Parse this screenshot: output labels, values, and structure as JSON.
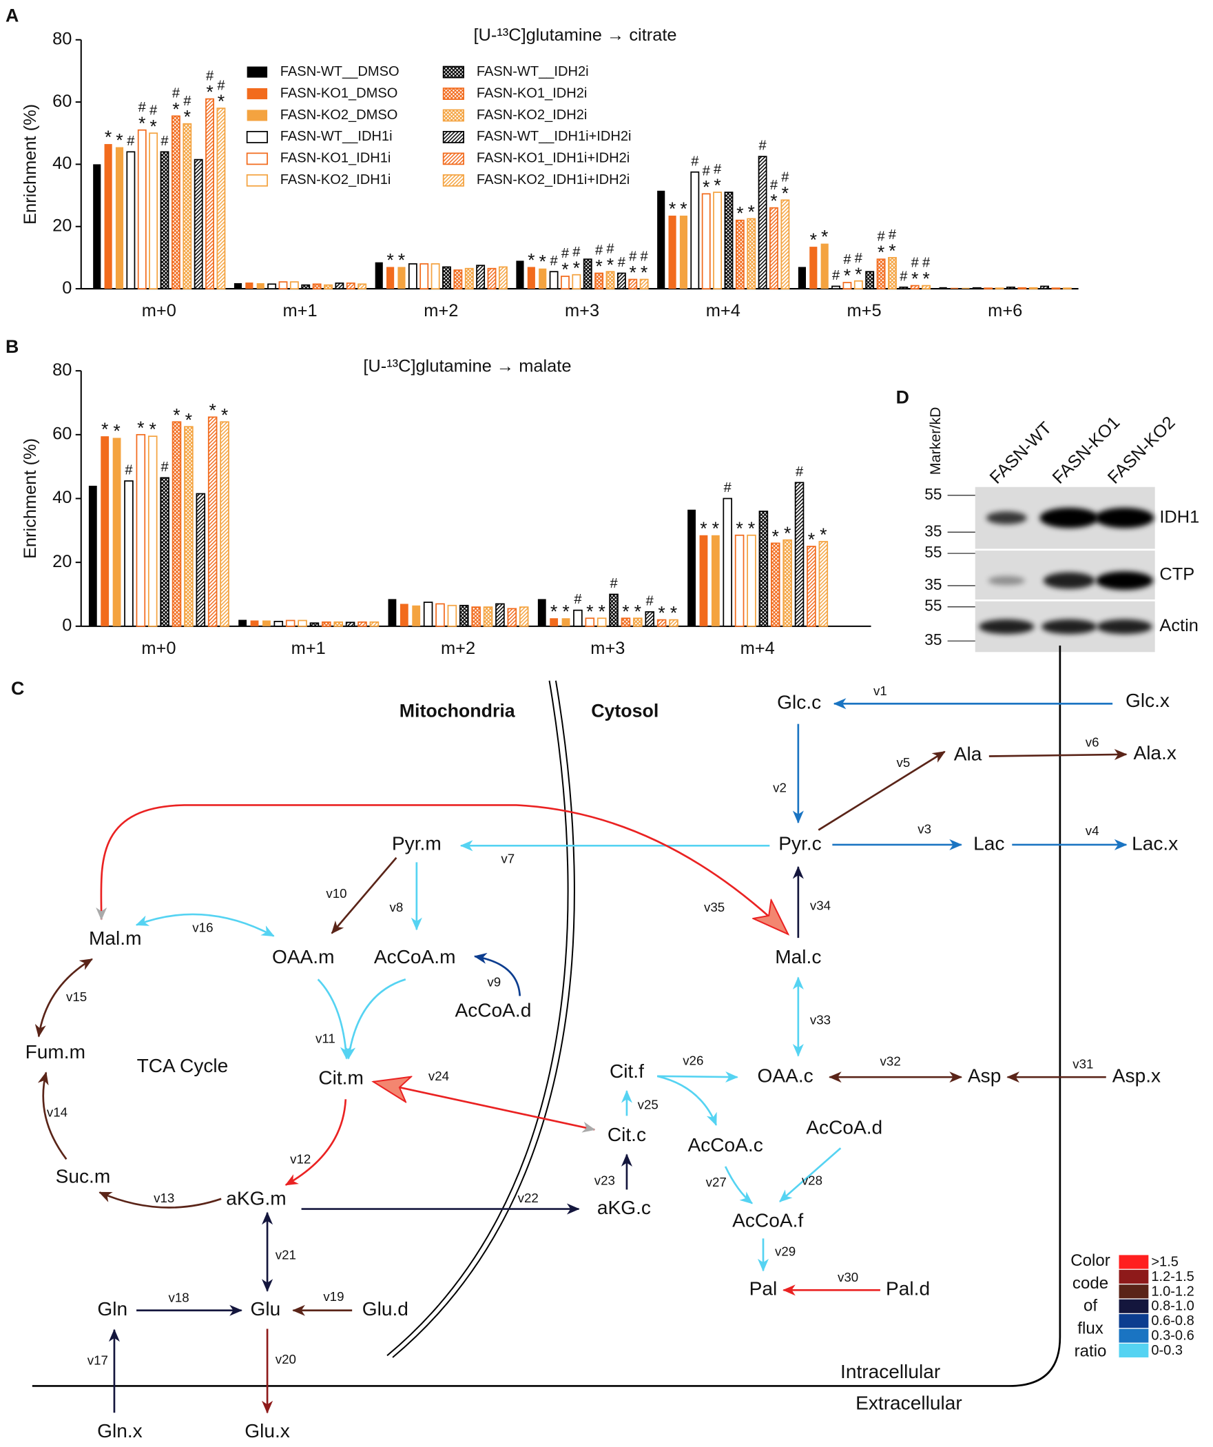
{
  "chart_data": [
    {
      "type": "bar",
      "panel": "A",
      "title": "[U-¹³C]glutamine → citrate",
      "ylabel": "Enrichment (%)",
      "categories": [
        "m+0",
        "m+1",
        "m+2",
        "m+3",
        "m+4",
        "m+5",
        "m+6"
      ],
      "ylim": [
        0,
        80
      ],
      "yticks": [
        0,
        20,
        40,
        60,
        80
      ],
      "series": [
        {
          "name": "FASN-WT__DMSO",
          "color": "#000000",
          "pattern": "solid",
          "values": [
            40,
            1.8,
            8.5,
            9,
            31.5,
            7,
            0.5
          ],
          "annotations": [
            null,
            null,
            null,
            null,
            null,
            null,
            null
          ]
        },
        {
          "name": "FASN-KO1_DMSO",
          "color": "#f26b1d",
          "pattern": "solid",
          "values": [
            46.5,
            2,
            7,
            7,
            23.5,
            13.5,
            0.3
          ],
          "annotations": [
            [
              "*"
            ],
            null,
            [
              "*"
            ],
            [
              "*"
            ],
            [
              "*"
            ],
            [
              "*"
            ],
            null
          ]
        },
        {
          "name": "FASN-KO2_DMSO",
          "color": "#f4a340",
          "pattern": "solid",
          "values": [
            45.5,
            1.8,
            7,
            6.5,
            23.5,
            14.5,
            0.3
          ],
          "annotations": [
            [
              "*"
            ],
            null,
            [
              "*"
            ],
            [
              "*"
            ],
            [
              "*"
            ],
            [
              "*"
            ],
            null
          ]
        },
        {
          "name": "FASN-WT__IDH1i",
          "color": "#000000",
          "pattern": "open",
          "values": [
            44,
            1.5,
            8,
            5.5,
            37.5,
            0.8,
            0.3
          ],
          "annotations": [
            [
              "#"
            ],
            null,
            null,
            [
              "#"
            ],
            [
              "#"
            ],
            [
              "#"
            ],
            null
          ]
        },
        {
          "name": "FASN-KO1_IDH1i",
          "color": "#f26b1d",
          "pattern": "open",
          "values": [
            51,
            2.2,
            8,
            4,
            30.5,
            2,
            0.2
          ],
          "annotations": [
            [
              "*",
              "#"
            ],
            null,
            null,
            [
              "*",
              "#"
            ],
            [
              "*",
              "#"
            ],
            [
              "*",
              "#"
            ],
            null
          ]
        },
        {
          "name": "FASN-KO2_IDH1i",
          "color": "#f4a340",
          "pattern": "open",
          "values": [
            50,
            2.2,
            8,
            4.5,
            31,
            2.5,
            0.2
          ],
          "annotations": [
            [
              "*",
              "#"
            ],
            null,
            null,
            [
              "*",
              "#"
            ],
            [
              "*",
              "#"
            ],
            [
              "*",
              "#"
            ],
            null
          ]
        },
        {
          "name": "FASN-WT__IDH2i",
          "color": "#000000",
          "pattern": "crosshatch",
          "values": [
            44,
            1.2,
            7,
            9.5,
            31,
            5.5,
            0.5
          ],
          "annotations": [
            [
              "#"
            ],
            null,
            null,
            null,
            null,
            null,
            null
          ]
        },
        {
          "name": "FASN-KO1_IDH2i",
          "color": "#f26b1d",
          "pattern": "crosshatch",
          "values": [
            55.5,
            1.5,
            6,
            5,
            22,
            9.5,
            0.3
          ],
          "annotations": [
            [
              "*",
              "#"
            ],
            null,
            null,
            [
              "*",
              "#"
            ],
            [
              "*"
            ],
            [
              "*",
              "#"
            ],
            null
          ]
        },
        {
          "name": "FASN-KO2_IDH2i",
          "color": "#f4a340",
          "pattern": "crosshatch",
          "values": [
            53,
            1.2,
            6.5,
            5.5,
            22.5,
            10,
            0.3
          ],
          "annotations": [
            [
              "*",
              "#"
            ],
            null,
            null,
            [
              "*",
              "#"
            ],
            [
              "*"
            ],
            [
              "*",
              "#"
            ],
            null
          ]
        },
        {
          "name": "FASN-WT__IDH1i+IDH2i",
          "color": "#000000",
          "pattern": "stripes",
          "values": [
            41.5,
            1.8,
            7.5,
            5,
            42.5,
            0.5,
            0.8
          ],
          "annotations": [
            null,
            null,
            null,
            [
              "#"
            ],
            [
              "#"
            ],
            [
              "#"
            ],
            null
          ]
        },
        {
          "name": "FASN-KO1_IDH1i+IDH2i",
          "color": "#f26b1d",
          "pattern": "stripes",
          "values": [
            61,
            1.8,
            6.5,
            3,
            26,
            1,
            0.2
          ],
          "annotations": [
            [
              "*",
              "#"
            ],
            null,
            null,
            [
              "*",
              "#"
            ],
            [
              "*",
              "#"
            ],
            [
              "*",
              "#"
            ],
            null
          ]
        },
        {
          "name": "FASN-KO2_IDH1i+IDH2i",
          "color": "#f4a340",
          "pattern": "stripes",
          "values": [
            58,
            1.5,
            7,
            3,
            28.5,
            1,
            0.2
          ],
          "annotations": [
            [
              "*",
              "#"
            ],
            null,
            null,
            [
              "*",
              "#"
            ],
            [
              "*",
              "#"
            ],
            [
              "*",
              "#"
            ],
            null
          ]
        }
      ]
    },
    {
      "type": "bar",
      "panel": "B",
      "title": "[U-¹³C]glutamine → malate",
      "ylabel": "Enrichment (%)",
      "categories": [
        "m+0",
        "m+1",
        "m+2",
        "m+3",
        "m+4"
      ],
      "ylim": [
        0,
        80
      ],
      "yticks": [
        0,
        20,
        40,
        60,
        80
      ],
      "series": [
        {
          "color": "#000000",
          "pattern": "solid",
          "values": [
            44,
            2,
            8.5,
            8.5,
            36.5
          ],
          "annotations": [
            null,
            null,
            null,
            null,
            null
          ]
        },
        {
          "color": "#f26b1d",
          "pattern": "solid",
          "values": [
            59.5,
            1.8,
            7,
            2.5,
            28.5
          ],
          "annotations": [
            [
              "*"
            ],
            null,
            null,
            [
              "*"
            ],
            [
              "*"
            ]
          ]
        },
        {
          "color": "#f4a340",
          "pattern": "solid",
          "values": [
            59,
            1.8,
            6.5,
            2.5,
            28.5
          ],
          "annotations": [
            [
              "*"
            ],
            null,
            null,
            [
              "*"
            ],
            [
              "*"
            ]
          ]
        },
        {
          "color": "#000000",
          "pattern": "open",
          "values": [
            45.5,
            1.5,
            7.5,
            5,
            40
          ],
          "annotations": [
            [
              "#"
            ],
            null,
            null,
            [
              "#"
            ],
            [
              "#"
            ]
          ]
        },
        {
          "color": "#f26b1d",
          "pattern": "open",
          "values": [
            60,
            1.8,
            7,
            2.5,
            28.5
          ],
          "annotations": [
            [
              "*"
            ],
            null,
            null,
            [
              "*"
            ],
            [
              "*"
            ]
          ]
        },
        {
          "color": "#f4a340",
          "pattern": "open",
          "values": [
            59.5,
            1.8,
            6.5,
            2.5,
            28.5
          ],
          "annotations": [
            [
              "*"
            ],
            null,
            null,
            [
              "*"
            ],
            [
              "*"
            ]
          ]
        },
        {
          "color": "#000000",
          "pattern": "crosshatch",
          "values": [
            46.5,
            1,
            6.5,
            10,
            36
          ],
          "annotations": [
            [
              "#"
            ],
            null,
            null,
            [
              "#"
            ],
            null
          ]
        },
        {
          "color": "#f26b1d",
          "pattern": "crosshatch",
          "values": [
            64,
            1.3,
            6,
            2.5,
            26
          ],
          "annotations": [
            [
              "*"
            ],
            null,
            null,
            [
              "*"
            ],
            [
              "*"
            ]
          ]
        },
        {
          "color": "#f4a340",
          "pattern": "crosshatch",
          "values": [
            62.5,
            1.3,
            6,
            2.5,
            27
          ],
          "annotations": [
            [
              "*"
            ],
            null,
            null,
            [
              "*"
            ],
            [
              "*"
            ]
          ]
        },
        {
          "color": "#000000",
          "pattern": "stripes",
          "values": [
            41.5,
            1.2,
            7,
            4.5,
            45
          ],
          "annotations": [
            null,
            null,
            null,
            [
              "#"
            ],
            [
              "#"
            ]
          ]
        },
        {
          "color": "#f26b1d",
          "pattern": "stripes",
          "values": [
            65.5,
            1.3,
            5.5,
            2,
            25
          ],
          "annotations": [
            [
              "*"
            ],
            null,
            null,
            [
              "*"
            ],
            [
              "*"
            ]
          ]
        },
        {
          "color": "#f4a340",
          "pattern": "stripes",
          "values": [
            64,
            1.3,
            6,
            2,
            26.5
          ],
          "annotations": [
            [
              "*"
            ],
            null,
            null,
            [
              "*"
            ],
            [
              "*"
            ]
          ]
        }
      ]
    }
  ],
  "blot": {
    "panel": "D",
    "marker_title": "Marker/kD",
    "lanes": [
      "FASN-WT",
      "FASN-KO1",
      "FASN-KO2"
    ],
    "rows": [
      {
        "name": "IDH1",
        "markers": [
          55,
          35
        ]
      },
      {
        "name": "CTP",
        "markers": [
          55,
          35
        ]
      },
      {
        "name": "Actin",
        "markers": [
          55,
          35
        ]
      }
    ]
  },
  "pathway": {
    "panel": "C",
    "compartments": [
      "Mitochondria",
      "Cytosol"
    ],
    "regions": [
      "Intracellular",
      "Extracellular"
    ],
    "cycle_label": "TCA Cycle",
    "nodes": [
      "Glc.c",
      "Glc.x",
      "Ala",
      "Ala.x",
      "Pyr.c",
      "Lac",
      "Lac.x",
      "Pyr.m",
      "Mal.m",
      "OAA.m",
      "AcCoA.m",
      "AcCoA.d",
      "Mal.c",
      "OAA.c",
      "Asp",
      "Asp.x",
      "Cit.f",
      "Cit.c",
      "AcCoA.c",
      "AcCoA.d",
      "AcCoA.f",
      "Pal",
      "Pal.d",
      "Fum.m",
      "Suc.m",
      "aKG.m",
      "aKG.c",
      "Cit.m",
      "Glu",
      "Glu.d",
      "Gln",
      "Gln.x",
      "Glu.x"
    ],
    "edges": [
      {
        "label": "v1",
        "color": "#1a74c2"
      },
      {
        "label": "v2",
        "color": "#1a74c2"
      },
      {
        "label": "v3",
        "color": "#1a74c2"
      },
      {
        "label": "v4",
        "color": "#1a74c2"
      },
      {
        "label": "v5",
        "color": "#5a2418"
      },
      {
        "label": "v6",
        "color": "#5a2418"
      },
      {
        "label": "v7",
        "color": "#55d3f2"
      },
      {
        "label": "v8",
        "color": "#55d3f2"
      },
      {
        "label": "v9",
        "color": "#0c3d8f"
      },
      {
        "label": "v10",
        "color": "#5a2418"
      },
      {
        "label": "v11",
        "color": "#55d3f2"
      },
      {
        "label": "v12",
        "color": "#ea2222"
      },
      {
        "label": "v13",
        "color": "#5a2418"
      },
      {
        "label": "v14",
        "color": "#5a2418"
      },
      {
        "label": "v15",
        "color": "#5a2418"
      },
      {
        "label": "v16",
        "color": "#55d3f2"
      },
      {
        "label": "v17",
        "color": "#14163d"
      },
      {
        "label": "v18",
        "color": "#14163d"
      },
      {
        "label": "v19",
        "color": "#5a2418"
      },
      {
        "label": "v20",
        "color": "#8e1a1a"
      },
      {
        "label": "v21",
        "color": "#14163d"
      },
      {
        "label": "v22",
        "color": "#14163d"
      },
      {
        "label": "v23",
        "color": "#14163d"
      },
      {
        "label": "v24",
        "color": "#ea2222"
      },
      {
        "label": "v25",
        "color": "#55d3f2"
      },
      {
        "label": "v26",
        "color": "#55d3f2"
      },
      {
        "label": "v27",
        "color": "#55d3f2"
      },
      {
        "label": "v28",
        "color": "#55d3f2"
      },
      {
        "label": "v29",
        "color": "#55d3f2"
      },
      {
        "label": "v30",
        "color": "#ea2222"
      },
      {
        "label": "v31",
        "color": "#5a2418"
      },
      {
        "label": "v32",
        "color": "#5a2418"
      },
      {
        "label": "v33",
        "color": "#55d3f2"
      },
      {
        "label": "v34",
        "color": "#14163d"
      },
      {
        "label": "v35",
        "color": "#ea2222"
      }
    ],
    "color_code": {
      "title": [
        "Color",
        "code",
        "of",
        "flux",
        "ratio"
      ],
      "bins": [
        {
          "label": ">1.5",
          "color": "#ff1f1f"
        },
        {
          "label": "1.2-1.5",
          "color": "#8e1a1a"
        },
        {
          "label": "1.0-1.2",
          "color": "#5a2418"
        },
        {
          "label": "0.8-1.0",
          "color": "#14163d"
        },
        {
          "label": "0.6-0.8",
          "color": "#0c3d8f"
        },
        {
          "label": "0.3-0.6",
          "color": "#1a74c2"
        },
        {
          "label": "0-0.3",
          "color": "#55d3f2"
        }
      ]
    }
  }
}
